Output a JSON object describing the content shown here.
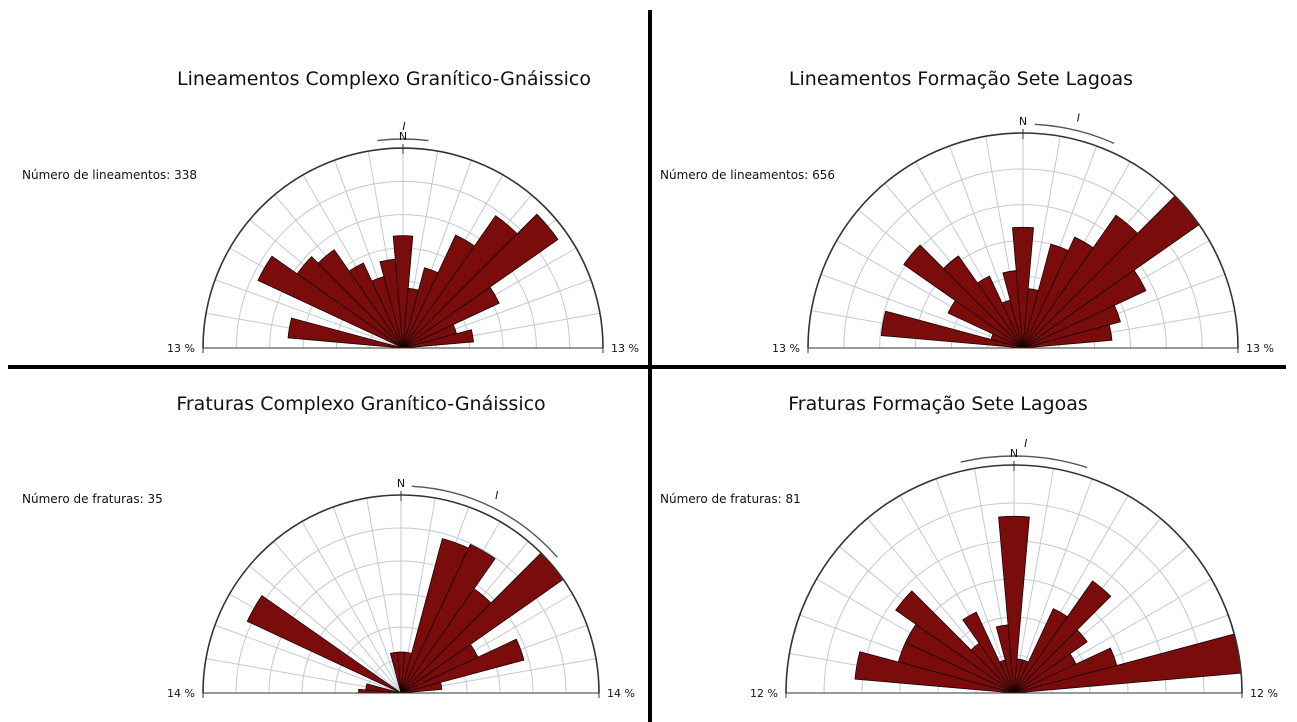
{
  "colors": {
    "petal": "#7a0c0c",
    "grid": "#c3c8d8",
    "frame": "#333333",
    "divider": "#000000"
  },
  "chart_data": [
    {
      "type": "rose",
      "title": "Lineamentos Complexo Granítico-Gnáissico",
      "count_label": "Número de lineamentos: 338",
      "north_label": "N",
      "mean_marker": "I",
      "axis_max_label": "13 %",
      "rmax": 13,
      "sectors_deg": [
        -90,
        -80,
        -70,
        -60,
        -50,
        -40,
        -30,
        -20,
        -10,
        0,
        10,
        20,
        30,
        40,
        50,
        60,
        70,
        80,
        90
      ],
      "bin_width_deg": 10,
      "values": [
        0,
        7.5,
        0,
        10.4,
        8.4,
        7.8,
        6.1,
        4.8,
        5.8,
        7.3,
        3.9,
        5.4,
        8.1,
        10.5,
        12.3,
        6.9,
        3.6,
        4.6,
        0
      ],
      "mean_arc_deg": [
        -7,
        7
      ]
    },
    {
      "type": "rose",
      "title": "Lineamentos Formação Sete Lagoas",
      "count_label": "Número de lineamentos: 656",
      "north_label": "N",
      "mean_marker": "I",
      "axis_max_label": "13 %",
      "rmax": 13,
      "sectors_deg": [
        -90,
        -80,
        -70,
        -60,
        -50,
        -40,
        -30,
        -20,
        -10,
        0,
        10,
        20,
        30,
        40,
        50,
        60,
        70,
        80,
        90
      ],
      "bin_width_deg": 10,
      "values": [
        0,
        8.6,
        2.0,
        5.0,
        8.8,
        6.8,
        4.8,
        3.0,
        4.7,
        7.3,
        3.6,
        6.5,
        7.4,
        9.8,
        13.0,
        8.2,
        6.1,
        5.4,
        0
      ],
      "mean_arc_deg": [
        3,
        24
      ]
    },
    {
      "type": "rose",
      "title": "Fraturas Complexo Granítico-Gnáissico",
      "count_label": "Número de fraturas: 35",
      "north_label": "N",
      "mean_marker": "I",
      "axis_max_label": "14 %",
      "rmax": 14,
      "sectors_deg": [
        -90,
        -80,
        -70,
        -60,
        -50,
        -40,
        -30,
        -20,
        -10,
        0,
        10,
        20,
        30,
        40,
        50,
        60,
        70,
        80,
        90
      ],
      "bin_width_deg": 10,
      "values": [
        3.0,
        2.5,
        0,
        12.0,
        0,
        0,
        0,
        0,
        2.9,
        2.9,
        2.9,
        11.3,
        11.6,
        9.0,
        14.0,
        6.0,
        9.0,
        2.9,
        0
      ],
      "mean_arc_deg": [
        3,
        49
      ]
    },
    {
      "type": "rose",
      "title": "Fraturas Formação Sete Lagoas",
      "count_label": "Número de fraturas: 81",
      "north_label": "N",
      "mean_marker": "I",
      "axis_max_label": "12 %",
      "rmax": 12,
      "sectors_deg": [
        -90,
        -80,
        -70,
        -60,
        -50,
        -40,
        -30,
        -20,
        -10,
        0,
        10,
        20,
        30,
        40,
        50,
        60,
        70,
        80,
        90
      ],
      "bin_width_deg": 10,
      "values": [
        0,
        8.4,
        6.3,
        6.3,
        7.6,
        3.2,
        4.7,
        1.8,
        3.6,
        9.3,
        1.8,
        1.8,
        4.9,
        7.2,
        4.7,
        3.6,
        5.6,
        12.0,
        0
      ],
      "mean_arc_deg": [
        -13,
        18
      ]
    }
  ]
}
